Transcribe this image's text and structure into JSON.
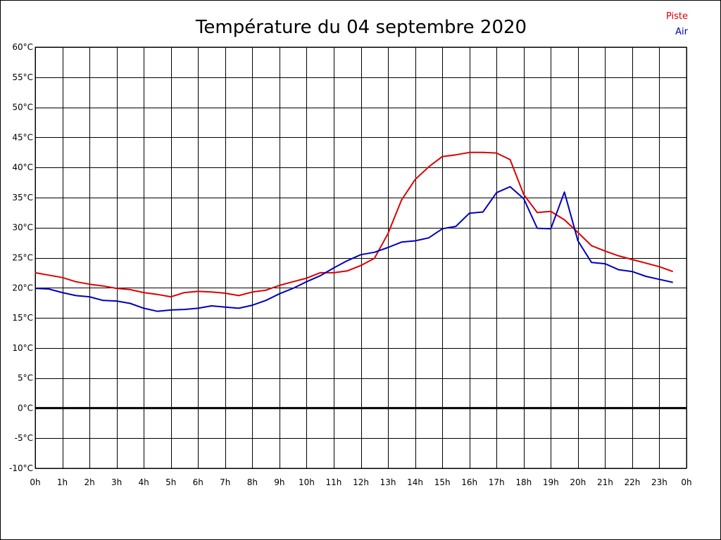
{
  "chart_data": {
    "type": "line",
    "title": "Température du 04 septembre 2020",
    "xlabel": "",
    "ylabel": "",
    "x_tick_labels": [
      "0h",
      "1h",
      "2h",
      "3h",
      "4h",
      "5h",
      "6h",
      "7h",
      "8h",
      "9h",
      "10h",
      "11h",
      "12h",
      "13h",
      "14h",
      "15h",
      "16h",
      "17h",
      "18h",
      "19h",
      "20h",
      "21h",
      "22h",
      "23h",
      "0h"
    ],
    "y_tick_labels": [
      "60°C",
      "55°C",
      "50°C",
      "45°C",
      "40°C",
      "35°C",
      "30°C",
      "25°C",
      "20°C",
      "15°C",
      "10°C",
      "5°C",
      "0°C",
      "-5°C",
      "-10°C"
    ],
    "ylim": [
      -10,
      60
    ],
    "xlim": [
      0,
      24
    ],
    "grid": true,
    "legend_position": "top-right",
    "zero_line": true,
    "x": [
      0,
      0.5,
      1,
      1.5,
      2,
      2.5,
      3,
      3.5,
      4,
      4.5,
      5,
      5.5,
      6,
      6.5,
      7,
      7.5,
      8,
      8.5,
      9,
      9.5,
      10,
      10.5,
      11,
      11.5,
      12,
      12.5,
      13,
      13.5,
      14,
      14.5,
      15,
      15.5,
      16,
      16.5,
      17,
      17.5,
      18,
      18.5,
      19,
      19.5,
      20,
      20.5,
      21,
      21.5,
      22,
      22.5,
      23,
      23.5
    ],
    "series": [
      {
        "name": "Piste",
        "color": "#dd0000",
        "values": [
          22.5,
          22.1,
          21.7,
          21.0,
          20.6,
          20.3,
          19.9,
          19.7,
          19.2,
          18.9,
          18.5,
          19.2,
          19.4,
          19.3,
          19.1,
          18.7,
          19.3,
          19.6,
          20.4,
          21.0,
          21.6,
          22.5,
          22.5,
          22.8,
          23.7,
          24.9,
          29.0,
          34.6,
          38.0,
          40.1,
          41.8,
          42.1,
          42.5,
          42.5,
          42.4,
          41.3,
          35.5,
          32.5,
          32.7,
          31.3,
          29.2,
          27.0,
          26.1,
          25.3,
          24.7,
          24.1,
          23.5,
          22.7
        ]
      },
      {
        "name": "Air",
        "color": "#0000bb",
        "values": [
          19.9,
          19.8,
          19.2,
          18.7,
          18.5,
          17.9,
          17.8,
          17.4,
          16.6,
          16.1,
          16.3,
          16.4,
          16.6,
          17.0,
          16.8,
          16.6,
          17.1,
          17.9,
          19.0,
          19.9,
          21.0,
          22.0,
          23.3,
          24.5,
          25.5,
          25.9,
          26.7,
          27.6,
          27.8,
          28.3,
          29.8,
          30.2,
          32.4,
          32.6,
          35.8,
          36.8,
          34.8,
          29.9,
          29.8,
          35.9,
          27.8,
          24.2,
          24.0,
          23.0,
          22.7,
          21.9,
          21.4,
          20.9
        ]
      }
    ]
  }
}
